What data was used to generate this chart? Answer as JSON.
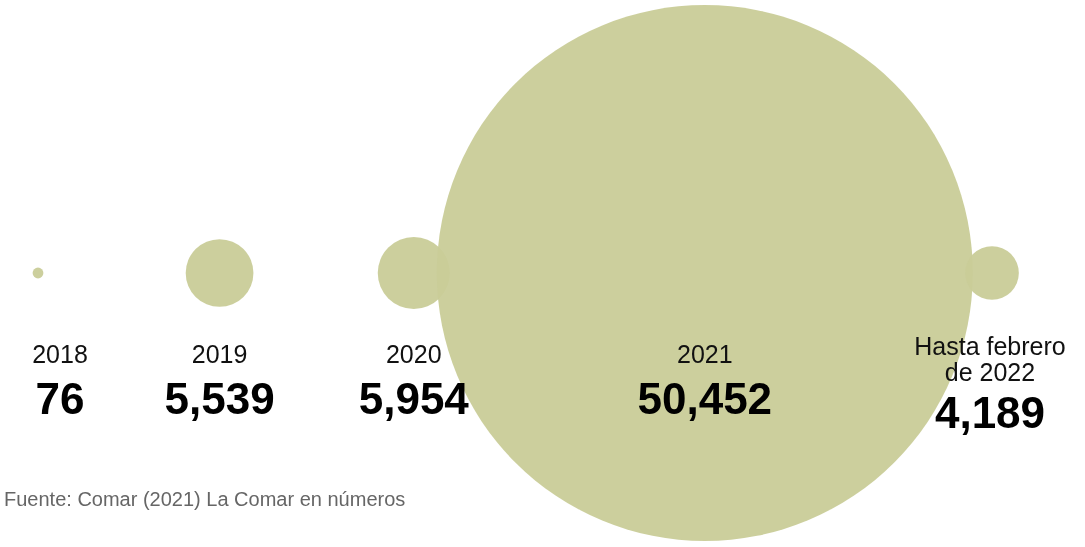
{
  "chart_data": {
    "type": "other",
    "categories": [
      "2018",
      "2019",
      "2020",
      "2021",
      "Hasta febrero de 2022"
    ],
    "values": [
      76,
      5539,
      5954,
      50452,
      4189
    ],
    "value_labels": [
      "76",
      "5,539",
      "5,954",
      "50,452",
      "4,189"
    ],
    "color": "#c9cc98",
    "annotations": [
      "Fuente: Comar (2021) La Comar en números"
    ]
  }
}
